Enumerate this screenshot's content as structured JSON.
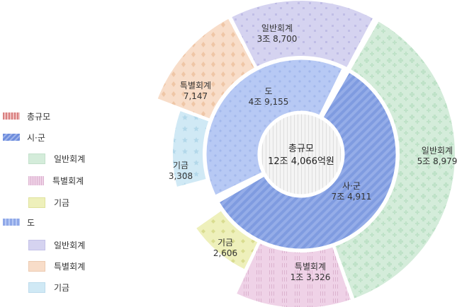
{
  "legend": {
    "total": "총규모",
    "city": "시·군",
    "province": "도",
    "general": "일반회계",
    "special": "특별회계",
    "fund": "기금"
  },
  "colors": {
    "total": "#f2f2f2",
    "city_inner": "#7f9be0",
    "prov_inner": "#b7c9f4",
    "city_general": "#d3ecd9",
    "city_special": "#eed0e6",
    "city_fund": "#eef0b8",
    "prov_general": "#d4d2ef",
    "prov_special": "#f8dcc7",
    "prov_fund": "#cfe8f4",
    "legend_total": "#d98080",
    "legend_city": "#6e8ddd",
    "legend_prov": "#8fa8e8"
  },
  "chart_data": {
    "type": "pie",
    "center": {
      "name": "총규모",
      "value_text": "12조 4,066억원",
      "value": 124066
    },
    "inner": [
      {
        "name": "시·군",
        "label": "시·군",
        "value_text": "7조 4,911",
        "value": 74911
      },
      {
        "name": "도",
        "label": "도",
        "value_text": "4조 9,155",
        "value": 49155
      }
    ],
    "outer": [
      {
        "group": "시·군",
        "name": "일반회계",
        "value_text": "5조 8,979",
        "value": 58979
      },
      {
        "group": "시·군",
        "name": "특별회계",
        "value_text": "1조 3,326",
        "value": 13326
      },
      {
        "group": "시·군",
        "name": "기금",
        "value_text": "2,606",
        "value": 2606
      },
      {
        "group": "도",
        "name": "기금",
        "value_text": "3,308",
        "value": 3308
      },
      {
        "group": "도",
        "name": "특별회계",
        "value_text": "7,147",
        "value": 7147
      },
      {
        "group": "도",
        "name": "일반회계",
        "value_text": "3조 8,700",
        "value": 38700
      }
    ],
    "inner_labels": [
      "사·군",
      "도"
    ]
  }
}
